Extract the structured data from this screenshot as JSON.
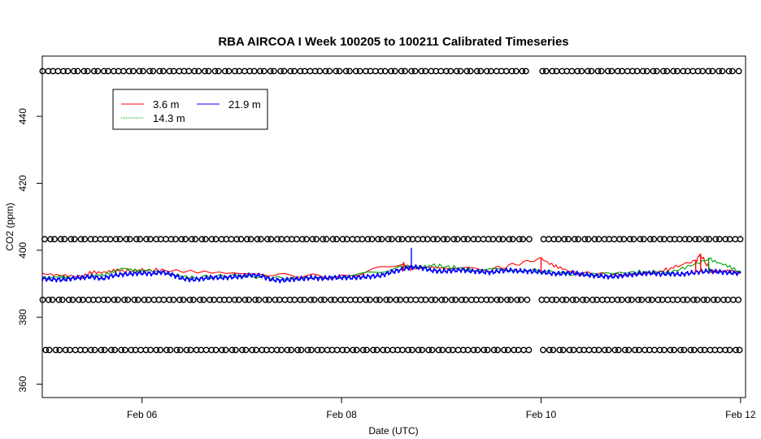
{
  "chart_data": {
    "type": "line",
    "title": "RBA AIRCOA I  Week 100205 to 100211  Calibrated Timeseries",
    "xlabel": "Date (UTC)",
    "ylabel": "CO2 (ppm)",
    "xlim": [
      5.0,
      12.05
    ],
    "ylim": [
      356,
      458
    ],
    "x_ticks": [
      {
        "value": 6,
        "label": "Feb 06"
      },
      {
        "value": 8,
        "label": "Feb 08"
      },
      {
        "value": 10,
        "label": "Feb 10"
      },
      {
        "value": 12,
        "label": "Feb 12"
      }
    ],
    "y_ticks": [
      {
        "value": 360,
        "label": "360"
      },
      {
        "value": 380,
        "label": "380"
      },
      {
        "value": 400,
        "label": "400"
      },
      {
        "value": 420,
        "label": "420"
      },
      {
        "value": 440,
        "label": "440"
      }
    ],
    "legend": {
      "position": "top-left",
      "entries": [
        {
          "label": "3.6 m",
          "color": "#ff0000"
        },
        {
          "label": "21.9 m",
          "color": "#0000ff"
        },
        {
          "label": "14.3 m",
          "color": "#00a000"
        }
      ]
    },
    "series": [
      {
        "name": "21.9 m",
        "color": "#0000ff",
        "x": [
          5.0,
          5.1,
          5.2,
          5.3,
          5.4,
          5.5,
          5.6,
          5.7,
          5.8,
          5.9,
          6.0,
          6.1,
          6.2,
          6.3,
          6.4,
          6.5,
          6.6,
          6.7,
          6.8,
          6.9,
          7.0,
          7.1,
          7.2,
          7.3,
          7.4,
          7.5,
          7.6,
          7.7,
          7.8,
          7.9,
          8.0,
          8.1,
          8.2,
          8.3,
          8.4,
          8.5,
          8.6,
          8.7,
          8.8,
          8.9,
          9.0,
          9.1,
          9.2,
          9.3,
          9.4,
          9.5,
          9.6,
          9.7,
          9.8,
          9.9,
          10.0,
          10.1,
          10.2,
          10.3,
          10.4,
          10.5,
          10.6,
          10.7,
          10.8,
          10.9,
          11.0,
          11.1,
          11.2,
          11.3,
          11.4,
          11.5,
          11.6,
          11.7,
          11.8,
          11.9,
          12.0
        ],
        "y": [
          391.5,
          391.3,
          391.2,
          391.6,
          391.9,
          392.1,
          391.5,
          392.4,
          392.8,
          393.0,
          393.2,
          393.0,
          393.5,
          392.7,
          391.6,
          391.2,
          391.5,
          391.9,
          391.8,
          392.0,
          392.2,
          392.6,
          392.3,
          391.2,
          391.0,
          391.3,
          391.5,
          391.8,
          391.6,
          391.8,
          391.9,
          391.8,
          392.0,
          392.2,
          392.5,
          393.5,
          394.2,
          395.0,
          394.8,
          394.0,
          393.7,
          393.9,
          394.1,
          393.8,
          393.6,
          393.4,
          393.9,
          394.0,
          393.8,
          393.7,
          393.6,
          393.1,
          393.0,
          393.3,
          392.9,
          392.5,
          392.3,
          392.1,
          392.4,
          392.7,
          393.0,
          393.2,
          392.9,
          393.0,
          392.8,
          393.2,
          393.6,
          393.8,
          393.5,
          393.3,
          393.1
        ]
      },
      {
        "name": "3.6 m",
        "color": "#ff0000",
        "x": [
          5.0,
          5.4,
          5.5,
          5.8,
          6.2,
          7.2,
          8.0,
          8.6,
          8.7,
          8.9,
          9.5,
          10.0,
          10.3,
          10.8,
          11.2,
          11.55,
          11.6,
          11.7,
          12.0
        ],
        "y": [
          393.0,
          392.0,
          393.5,
          393.8,
          394.0,
          392.8,
          392.0,
          396.0,
          394.5,
          395.0,
          394.2,
          397.5,
          393.2,
          392.5,
          393.6,
          397.0,
          398.5,
          394.0,
          393.2
        ]
      },
      {
        "name": "14.3 m",
        "color": "#00a000",
        "x": [
          5.0,
          5.3,
          5.6,
          5.8,
          6.1,
          6.5,
          7.0,
          7.5,
          8.0,
          8.6,
          8.9,
          9.3,
          9.9,
          10.4,
          10.9,
          11.3,
          11.7,
          12.0
        ],
        "y": [
          392.0,
          391.8,
          392.5,
          394.5,
          393.8,
          391.8,
          392.4,
          391.6,
          391.9,
          394.8,
          395.5,
          394.3,
          393.9,
          392.7,
          393.4,
          393.4,
          397.5,
          393.3
        ]
      }
    ],
    "marker_rows": {
      "symbol": "o",
      "levels": [
        453.5,
        403.3,
        385.2,
        370.2
      ],
      "x_start": 5.0,
      "x_end": 12.0,
      "gap": [
        9.87,
        9.97
      ]
    }
  }
}
